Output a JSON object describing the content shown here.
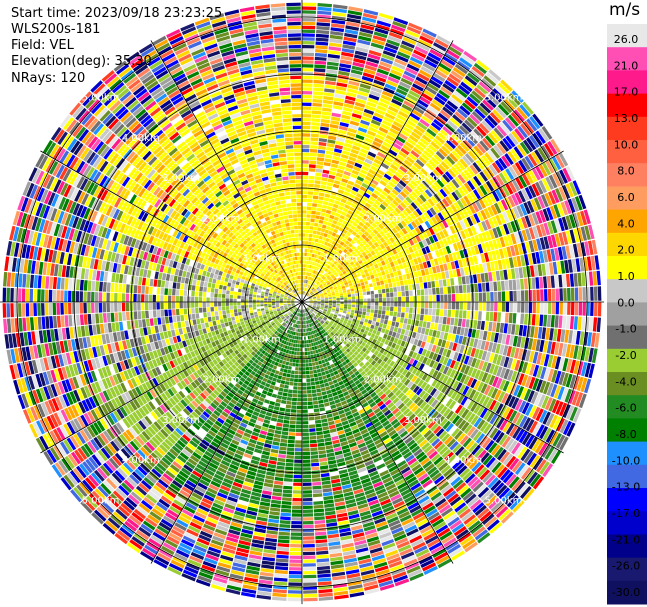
{
  "header": {
    "start_time": "Start time: 2023/09/18 23:23:25",
    "instrument": "WLS200s-181",
    "field": "Field: VEL",
    "elevation": "Elevation(deg): 35.30",
    "nrays": "NRays: 120"
  },
  "ppi": {
    "nrays": 120,
    "ring_labels": [
      "1.00km",
      "2.00km",
      "3.00km",
      "4.00km",
      "5.00km"
    ],
    "spoke_angles_deg": [
      0,
      30,
      60,
      90,
      120,
      150,
      180,
      210,
      240,
      270,
      300,
      330
    ]
  },
  "colorbar": {
    "unit": "m/s",
    "ticks": [
      "26.0",
      "21.0",
      "17.0",
      "13.0",
      "10.0",
      "8.0",
      "6.0",
      "4.0",
      "2.0",
      "1.0",
      "0.0",
      "-1.0",
      "-2.0",
      "-4.0",
      "-6.0",
      "-8.0",
      "-10.0",
      "-13.0",
      "-17.0",
      "-21.0",
      "-26.0",
      "-30.0"
    ],
    "colors": [
      "#e8e8e8",
      "#ff4fb5",
      "#ff1a8c",
      "#ff0000",
      "#ff3b1f",
      "#ff6040",
      "#ff8060",
      "#ff9c5f",
      "#ffa500",
      "#ffd700",
      "#ffff00",
      "#c8c8c8",
      "#a0a0a0",
      "#707070",
      "#9acd32",
      "#6b8e23",
      "#228b22",
      "#008000",
      "#1e90ff",
      "#4169e1",
      "#0000ff",
      "#0000cd",
      "#00008b",
      "#191970",
      "#101060"
    ]
  }
}
